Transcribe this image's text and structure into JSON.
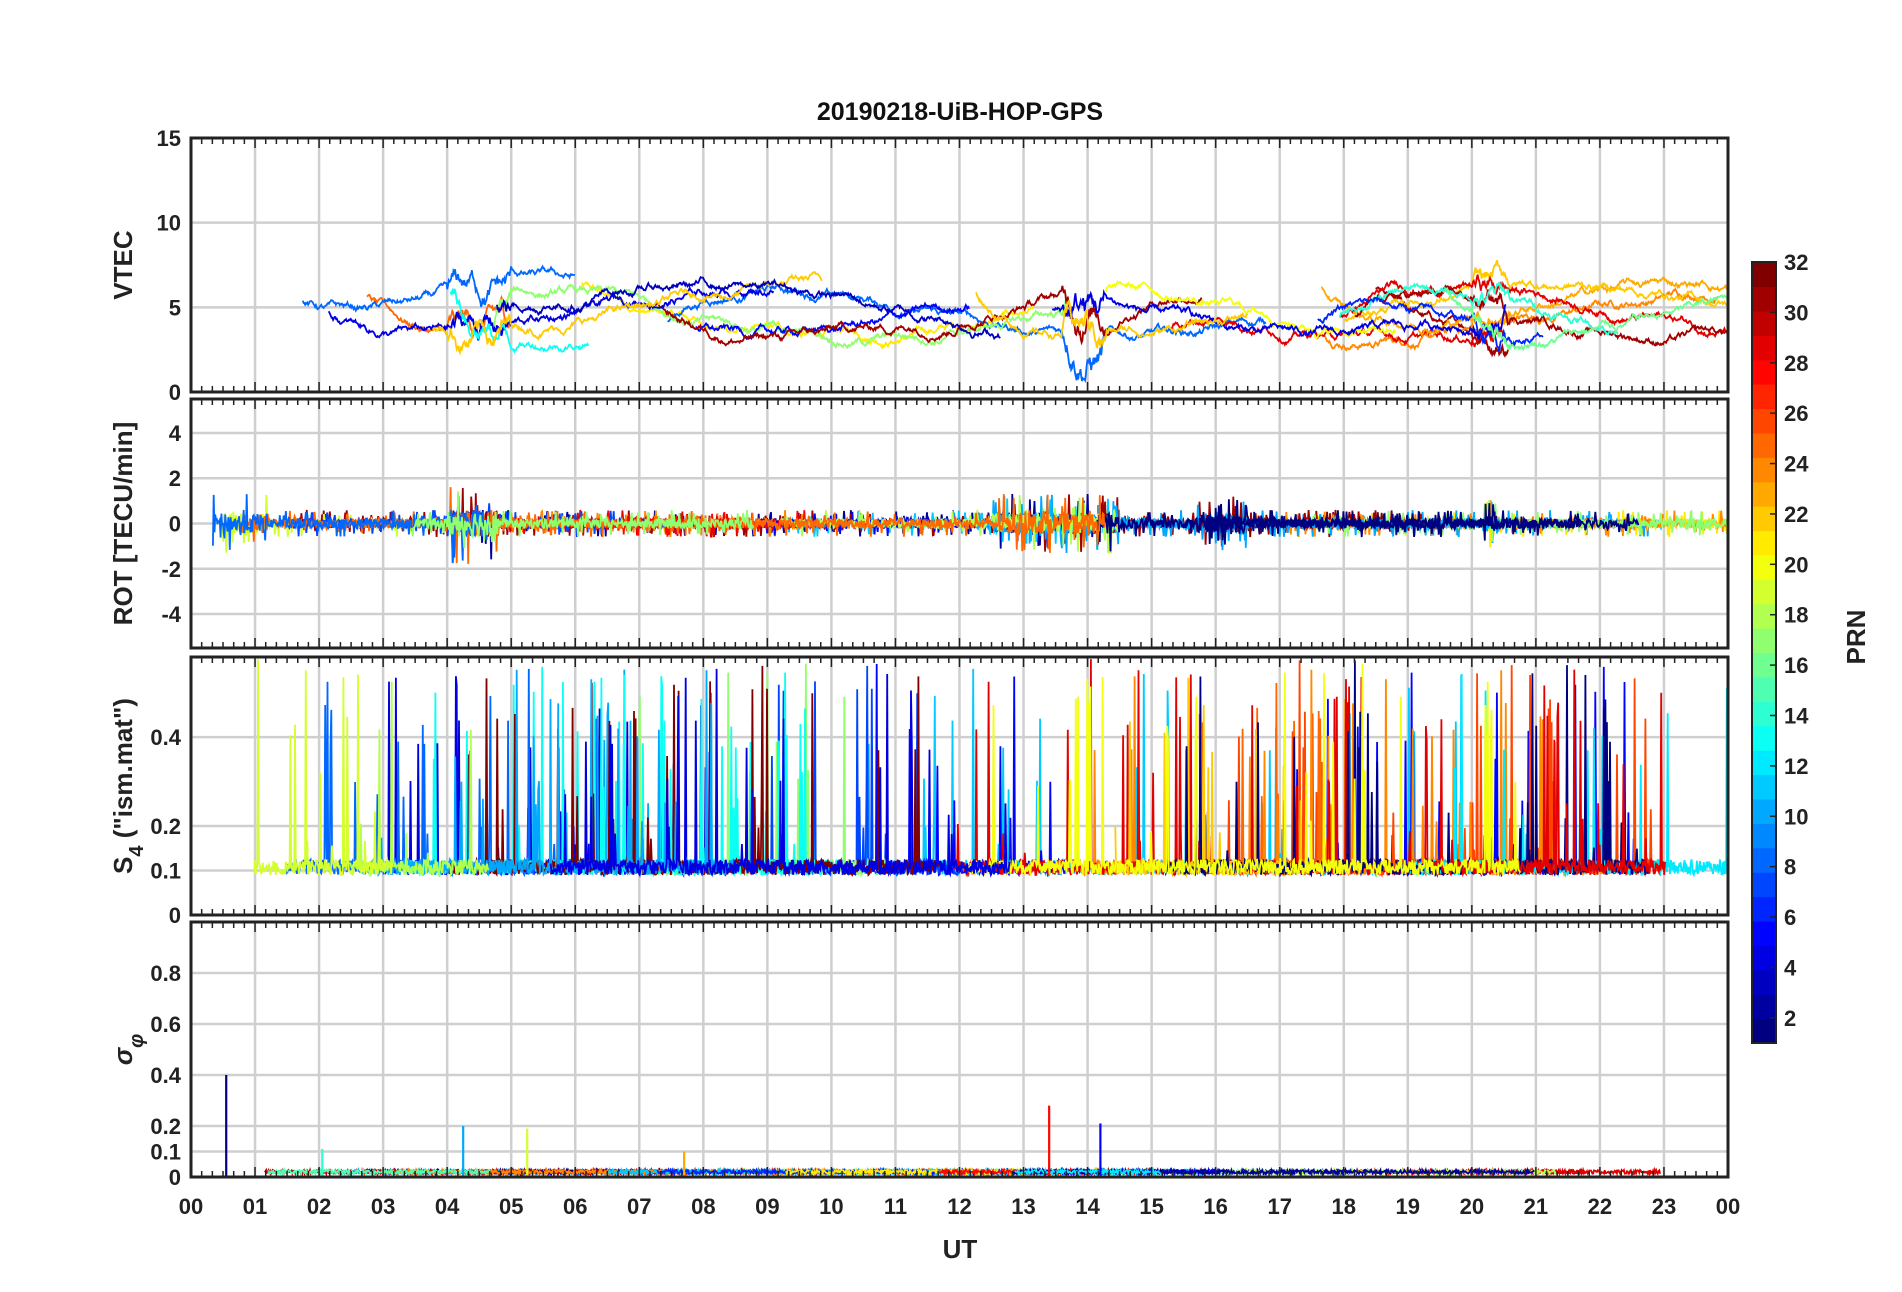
{
  "chart_data": {
    "type": "line",
    "title": "20190218-UiB-HOP-GPS",
    "xlabel": "UT",
    "xlim": [
      0,
      24
    ],
    "x_tick_labels": [
      "00",
      "01",
      "02",
      "03",
      "04",
      "05",
      "06",
      "07",
      "08",
      "09",
      "10",
      "11",
      "12",
      "13",
      "14",
      "15",
      "16",
      "17",
      "18",
      "19",
      "20",
      "21",
      "22",
      "23",
      "00"
    ],
    "grid": true,
    "colormap": "jet",
    "colorbar": {
      "label": "PRN",
      "range": [
        1,
        32
      ],
      "ticks": [
        "2",
        "4",
        "6",
        "8",
        "10",
        "12",
        "14",
        "16",
        "18",
        "20",
        "22",
        "24",
        "26",
        "28",
        "30",
        "32"
      ],
      "placement": "right"
    },
    "panels": [
      {
        "id": "vtec",
        "ylabel": "VTEC",
        "ylim": [
          0,
          15
        ],
        "y_ticks": [
          0,
          5,
          10,
          15
        ],
        "y_tick_labels": [
          "0",
          "5",
          "10",
          "15"
        ],
        "style": "smooth",
        "base": 4.8,
        "spread": 1.6,
        "x_bursts": [
          [
            0.5,
            1.0,
            1.5
          ],
          [
            4.0,
            5.0,
            2.0
          ],
          [
            13.6,
            14.3,
            3.0
          ],
          [
            20.0,
            20.6,
            1.5
          ]
        ]
      },
      {
        "id": "rot",
        "ylabel": "ROT [TECU/min]",
        "ylim": [
          -5.5,
          5.5
        ],
        "y_ticks": [
          -4,
          -2,
          0,
          2,
          4
        ],
        "y_tick_labels": [
          "-4",
          "-2",
          "0",
          "2",
          "4"
        ],
        "style": "noise",
        "base": 0,
        "spread": 0.2,
        "x_bursts": [
          [
            0.3,
            1.2,
            1.2
          ],
          [
            4.0,
            4.8,
            2.0
          ],
          [
            12.5,
            14.5,
            1.2
          ],
          [
            15.7,
            16.5,
            1.0
          ],
          [
            20.2,
            20.4,
            0.8
          ]
        ]
      },
      {
        "id": "s4",
        "ylabel": "S",
        "ylabel_subscript": "4",
        "ylabel_suffix": " (\"ism.mat\")",
        "ylim": [
          0,
          0.58
        ],
        "y_ticks": [
          0,
          0.1,
          0.2,
          0.4
        ],
        "y_tick_labels": [
          "0",
          "0.1",
          "0.2",
          "0.4"
        ],
        "style": "spiky",
        "base": 0.09,
        "spread": 0.07,
        "x_bursts": [
          [
            0.0,
            24.0,
            0.3
          ]
        ]
      },
      {
        "id": "sigma_phi",
        "ylabel": "σ",
        "ylabel_subscript": "φ",
        "ylim": [
          0,
          1
        ],
        "y_ticks": [
          0,
          0.1,
          0.2,
          0.4,
          0.6,
          0.8
        ],
        "y_tick_labels": [
          "0",
          "0.1",
          "0.2",
          "0.4",
          "0.6",
          "0.8"
        ],
        "style": "floor",
        "base": 0.02,
        "spread": 0.015,
        "spikes": [
          [
            0.55,
            0.4
          ],
          [
            4.25,
            0.2
          ],
          [
            5.25,
            0.19
          ],
          [
            13.4,
            0.28
          ],
          [
            14.2,
            0.21
          ],
          [
            2.05,
            0.11
          ],
          [
            7.7,
            0.1
          ]
        ]
      }
    ],
    "series_count": 24
  }
}
